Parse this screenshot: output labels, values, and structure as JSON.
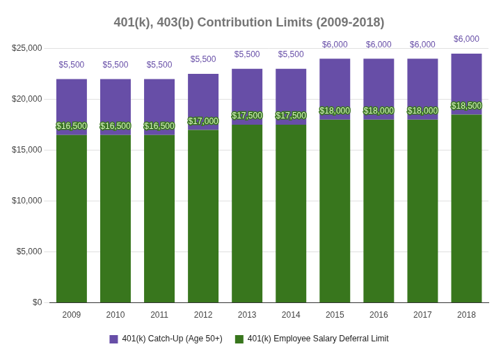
{
  "chart_data": {
    "type": "bar",
    "title": "401(k), 403(b) Contribution Limits (2009-2018)",
    "categories": [
      "2009",
      "2010",
      "2011",
      "2012",
      "2013",
      "2014",
      "2015",
      "2016",
      "2017",
      "2018"
    ],
    "series": [
      {
        "name": "401(k) Employee Salary Deferral Limit",
        "color": "#38761d",
        "values": [
          16500,
          16500,
          16500,
          17000,
          17500,
          17500,
          18000,
          18000,
          18000,
          18500
        ],
        "value_labels": [
          "$16,500",
          "$16,500",
          "$16,500",
          "$17,000",
          "$17,500",
          "$17,500",
          "$18,000",
          "$18,000",
          "$18,000",
          "$18,500"
        ]
      },
      {
        "name": "401(k) Catch-Up (Age 50+)",
        "color": "#674ea7",
        "values": [
          5500,
          5500,
          5500,
          5500,
          5500,
          5500,
          6000,
          6000,
          6000,
          6000
        ],
        "value_labels": [
          "$5,500",
          "$5,500",
          "$5,500",
          "$5,500",
          "$5,500",
          "$5,500",
          "$6,000",
          "$6,000",
          "$6,000",
          "$6,000"
        ]
      }
    ],
    "ylim": [
      0,
      25000
    ],
    "yticks": [
      {
        "value": 0,
        "label": "$0"
      },
      {
        "value": 5000,
        "label": "$5,000"
      },
      {
        "value": 10000,
        "label": "$10,000"
      },
      {
        "value": 15000,
        "label": "$15,000"
      },
      {
        "value": 20000,
        "label": "$20,000"
      },
      {
        "value": 25000,
        "label": "$25,000"
      }
    ],
    "grid": true,
    "stacked": true,
    "data_labels": true,
    "legend": "bottom"
  }
}
